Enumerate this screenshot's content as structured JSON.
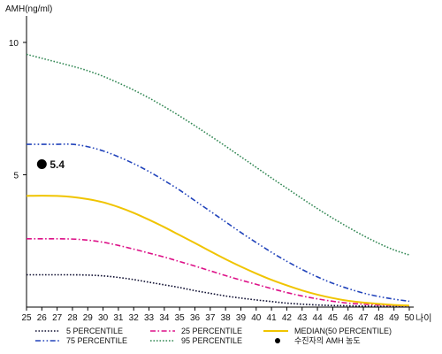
{
  "chart_data": {
    "type": "line",
    "ylabel": "AMH(ng/ml)",
    "xlabel": "나이",
    "ylim": [
      0,
      11
    ],
    "y_ticks": [
      5,
      10
    ],
    "y_tick_labels": [
      "5",
      "10"
    ],
    "x": [
      25,
      26,
      27,
      28,
      29,
      30,
      31,
      32,
      33,
      34,
      35,
      36,
      37,
      38,
      39,
      40,
      41,
      42,
      43,
      44,
      45,
      46,
      47,
      48,
      49,
      50
    ],
    "x_tick_labels": [
      "25",
      "26",
      "27",
      "28",
      "29",
      "30",
      "31",
      "32",
      "33",
      "34",
      "35",
      "36",
      "37",
      "38",
      "39",
      "40",
      "41",
      "42",
      "43",
      "44",
      "45",
      "46",
      "47",
      "48",
      "49",
      "50"
    ],
    "grid": false,
    "legend_position": "bottom",
    "series": [
      {
        "name": "5 PERCENTILE",
        "color": "#111133",
        "dash": "dotted",
        "values": [
          1.22,
          1.22,
          1.22,
          1.22,
          1.21,
          1.18,
          1.12,
          1.04,
          0.94,
          0.84,
          0.74,
          0.62,
          0.52,
          0.42,
          0.34,
          0.27,
          0.21,
          0.15,
          0.11,
          0.08,
          0.06,
          0.05,
          0.04,
          0.03,
          0.03,
          0.02
        ]
      },
      {
        "name": "25 PERCENTILE",
        "color": "#dd1188",
        "dash": "dashdot",
        "values": [
          2.58,
          2.58,
          2.58,
          2.57,
          2.53,
          2.45,
          2.33,
          2.19,
          2.04,
          1.89,
          1.72,
          1.55,
          1.37,
          1.19,
          1.02,
          0.86,
          0.7,
          0.55,
          0.42,
          0.31,
          0.22,
          0.15,
          0.11,
          0.08,
          0.06,
          0.05
        ]
      },
      {
        "name": "MEDIAN(50 PERCENTILE)",
        "color": "#f0c400",
        "dash": "solid",
        "values": [
          4.2,
          4.21,
          4.2,
          4.16,
          4.08,
          3.96,
          3.78,
          3.56,
          3.3,
          3.02,
          2.72,
          2.42,
          2.11,
          1.81,
          1.53,
          1.27,
          1.03,
          0.82,
          0.63,
          0.47,
          0.34,
          0.24,
          0.17,
          0.12,
          0.08,
          0.06
        ]
      },
      {
        "name": "75 PERCENTILE",
        "color": "#2244bb",
        "dash": "dashdotdot",
        "values": [
          6.15,
          6.15,
          6.15,
          6.15,
          6.06,
          5.9,
          5.68,
          5.42,
          5.12,
          4.78,
          4.42,
          4.02,
          3.62,
          3.22,
          2.82,
          2.44,
          2.07,
          1.73,
          1.42,
          1.14,
          0.9,
          0.7,
          0.53,
          0.4,
          0.3,
          0.22
        ]
      },
      {
        "name": "95 PERCENTILE",
        "color": "#338855",
        "dash": "dotted",
        "values": [
          9.55,
          9.4,
          9.25,
          9.1,
          8.93,
          8.72,
          8.47,
          8.2,
          7.9,
          7.57,
          7.22,
          6.85,
          6.47,
          6.08,
          5.68,
          5.28,
          4.88,
          4.49,
          4.1,
          3.72,
          3.36,
          3.02,
          2.7,
          2.41,
          2.16,
          1.97
        ]
      }
    ],
    "points": [
      {
        "name": "수진자의 AMH 농도",
        "x": 26,
        "y": 5.4,
        "label": "5.4",
        "color": "#000000"
      }
    ],
    "legend": [
      {
        "label": "5 PERCENTILE",
        "series": 0
      },
      {
        "label": "25 PERCENTILE",
        "series": 1
      },
      {
        "label": "MEDIAN(50 PERCENTILE)",
        "series": 2
      },
      {
        "label": "75 PERCENTILE",
        "series": 3
      },
      {
        "label": "95 PERCENTILE",
        "series": 4
      },
      {
        "label": "수진자의 AMH 농도",
        "point": 0
      }
    ]
  }
}
